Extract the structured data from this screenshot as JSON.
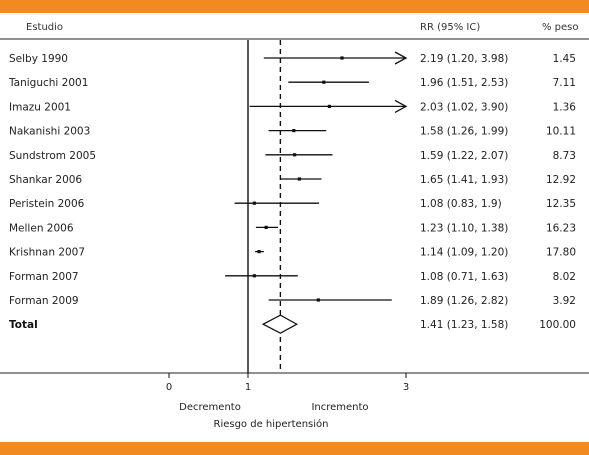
{
  "colors": {
    "band": "#f18a20",
    "ink": "#111111"
  },
  "header": {
    "col_study": "Estudio",
    "col_rr": "RR (95% IC)",
    "col_weight": "% peso"
  },
  "chart_data": {
    "type": "forest",
    "x_ticks": [
      0,
      1,
      3
    ],
    "reference_line": 1,
    "pooled_line": 1.41,
    "studies": [
      {
        "name": "Selby 1990",
        "rr": 2.19,
        "lo": 1.2,
        "hi": 3.98,
        "rr_text": "2.19 (1.20, 3.98)",
        "weight": "1.45",
        "arrow": true
      },
      {
        "name": "Taniguchi 2001",
        "rr": 1.96,
        "lo": 1.51,
        "hi": 2.53,
        "rr_text": "1.96 (1.51, 2.53)",
        "weight": "7.11",
        "arrow": false
      },
      {
        "name": "Imazu 2001",
        "rr": 2.03,
        "lo": 1.02,
        "hi": 3.9,
        "rr_text": "2.03 (1.02, 3.90)",
        "weight": "1.36",
        "arrow": true
      },
      {
        "name": "Nakanishi 2003",
        "rr": 1.58,
        "lo": 1.26,
        "hi": 1.99,
        "rr_text": "1.58 (1.26, 1.99)",
        "weight": "10.11",
        "arrow": false
      },
      {
        "name": "Sundstrom 2005",
        "rr": 1.59,
        "lo": 1.22,
        "hi": 2.07,
        "rr_text": "1.59 (1.22, 2.07)",
        "weight": "8.73",
        "arrow": false
      },
      {
        "name": "Shankar 2006",
        "rr": 1.65,
        "lo": 1.41,
        "hi": 1.93,
        "rr_text": "1.65 (1.41, 1.93)",
        "weight": "12.92",
        "arrow": false
      },
      {
        "name": "Peristein 2006",
        "rr": 1.08,
        "lo": 0.83,
        "hi": 1.9,
        "rr_text": "1.08 (0.83, 1.9)",
        "weight": "12.35",
        "arrow": false
      },
      {
        "name": "Mellen 2006",
        "rr": 1.23,
        "lo": 1.1,
        "hi": 1.38,
        "rr_text": "1.23 (1.10, 1.38)",
        "weight": "16.23",
        "arrow": false
      },
      {
        "name": "Krishnan 2007",
        "rr": 1.14,
        "lo": 1.09,
        "hi": 1.2,
        "rr_text": "1.14 (1.09, 1.20)",
        "weight": "17.80",
        "arrow": false
      },
      {
        "name": "Forman 2007",
        "rr": 1.08,
        "lo": 0.71,
        "hi": 1.63,
        "rr_text": "1.08 (0.71, 1.63)",
        "weight": "8.02",
        "arrow": false
      },
      {
        "name": "Forman 2009",
        "rr": 1.89,
        "lo": 1.26,
        "hi": 2.82,
        "rr_text": "1.89 (1.26, 2.82)",
        "weight": "3.92",
        "arrow": false
      }
    ],
    "total": {
      "name": "Total",
      "rr": 1.41,
      "lo": 1.23,
      "hi": 1.58,
      "rr_text": "1.41 (1.23, 1.58)",
      "weight": "100.00"
    },
    "x_label_left": "Decremento",
    "x_label_right": "Incremento",
    "x_title": "Riesgo de hipertensión"
  }
}
